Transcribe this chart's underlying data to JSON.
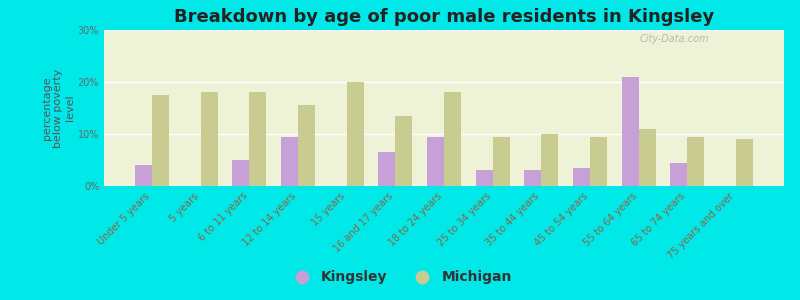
{
  "title": "Breakdown by age of poor male residents in Kingsley",
  "ylabel": "percentage\nbelow poverty\nlevel",
  "categories": [
    "Under 5 years",
    "5 years",
    "6 to 11 years",
    "12 to 14 years",
    "15 years",
    "16 and 17 years",
    "18 to 24 years",
    "25 to 34 years",
    "35 to 44 years",
    "45 to 54 years",
    "55 to 64 years",
    "65 to 74 years",
    "75 years and over"
  ],
  "kingsley": [
    4,
    0,
    5,
    9.5,
    0,
    6.5,
    9.5,
    3,
    3,
    3.5,
    21,
    4.5,
    0
  ],
  "michigan": [
    17.5,
    18,
    18,
    15.5,
    20,
    13.5,
    18,
    9.5,
    10,
    9.5,
    11,
    9.5,
    9
  ],
  "kingsley_color": "#c8a0d8",
  "michigan_color": "#c8cc90",
  "background_color": "#00e8e8",
  "plot_bg_color": "#eef3d8",
  "ylim": [
    0,
    30
  ],
  "yticks": [
    0,
    10,
    20,
    30
  ],
  "ytick_labels": [
    "0%",
    "10%",
    "20%",
    "30%"
  ],
  "title_fontsize": 13,
  "axis_label_fontsize": 8,
  "tick_fontsize": 7,
  "legend_fontsize": 10,
  "watermark": "City-Data.com"
}
